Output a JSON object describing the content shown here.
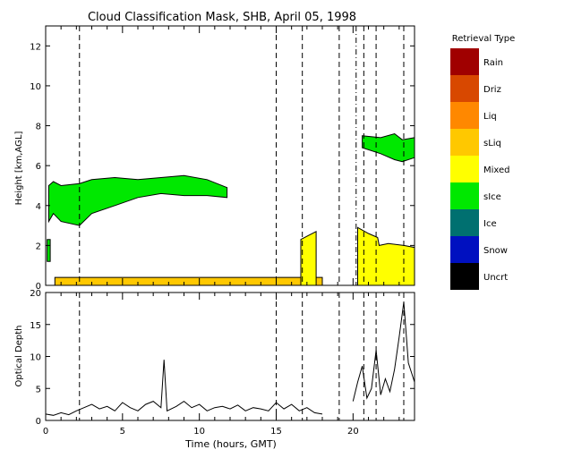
{
  "title": "Cloud Classification Mask, SHB, April 05, 1998",
  "legend": {
    "title": "Retrieval Type",
    "items": [
      {
        "label": "Rain",
        "color": "#a00000"
      },
      {
        "label": "Driz",
        "color": "#d84800"
      },
      {
        "label": "Liq",
        "color": "#ff8800"
      },
      {
        "label": "sLiq",
        "color": "#ffc800"
      },
      {
        "label": "Mixed",
        "color": "#ffff00"
      },
      {
        "label": "sIce",
        "color": "#00e800"
      },
      {
        "label": "Ice",
        "color": "#007070"
      },
      {
        "label": "Snow",
        "color": "#0010c0"
      },
      {
        "label": "Uncrt",
        "color": "#000000"
      }
    ]
  },
  "chart_data": [
    {
      "type": "area",
      "ylabel": "Height [km,AGL]",
      "xlim": [
        0,
        24
      ],
      "ylim": [
        0,
        13
      ],
      "yticks": [
        "0",
        "2",
        "4",
        "6",
        "8",
        "10",
        "12"
      ],
      "dashed_lines_x": [
        2.2,
        15.0,
        16.7,
        19.1,
        20.7,
        21.5,
        23.3
      ],
      "dash_dot_lines_x": [
        20.2
      ],
      "regions": [
        {
          "class": "sIce",
          "x": [
            0.2,
            0.5,
            1.0,
            2.2,
            3.0,
            4.5,
            6.0,
            7.5,
            9.0,
            10.5,
            11.8,
            11.8,
            10.5,
            9.0,
            7.5,
            6.0,
            4.5,
            3.0,
            2.2,
            1.0,
            0.5,
            0.2
          ],
          "y": [
            5.0,
            5.2,
            5.0,
            5.1,
            5.3,
            5.4,
            5.3,
            5.4,
            5.5,
            5.3,
            4.9,
            4.4,
            4.5,
            4.5,
            4.6,
            4.4,
            4.0,
            3.6,
            3.0,
            3.2,
            3.6,
            3.2
          ]
        },
        {
          "class": "sIce",
          "x": [
            0.1,
            0.3,
            0.3,
            0.1
          ],
          "y": [
            2.3,
            2.3,
            1.2,
            1.2
          ]
        },
        {
          "class": "sIce",
          "x": [
            20.6,
            21.8,
            22.7,
            23.2,
            24.0,
            24.0,
            23.2,
            22.7,
            21.8,
            20.6
          ],
          "y": [
            7.5,
            7.4,
            7.6,
            7.3,
            7.4,
            6.4,
            6.2,
            6.3,
            6.6,
            6.9
          ]
        },
        {
          "class": "sLiq",
          "x": [
            0.6,
            18.0,
            18.0,
            0.6
          ],
          "y": [
            0.4,
            0.4,
            0.0,
            0.0
          ]
        },
        {
          "class": "Mixed",
          "x": [
            16.6,
            17.1,
            17.6,
            17.6,
            16.6
          ],
          "y": [
            2.3,
            2.5,
            2.7,
            0.0,
            0.0
          ]
        },
        {
          "class": "Mixed",
          "x": [
            20.3,
            21.0,
            21.6,
            21.7,
            22.3,
            23.3,
            24.0,
            24.0,
            20.3
          ],
          "y": [
            2.9,
            2.6,
            2.4,
            2.0,
            2.1,
            2.0,
            1.9,
            0.0,
            0.0
          ]
        }
      ]
    },
    {
      "type": "line",
      "xlabel": "Time (hours, GMT)",
      "ylabel": "Optical Depth",
      "xlim": [
        0,
        24
      ],
      "ylim": [
        0,
        20
      ],
      "xticks": [
        "0",
        "5",
        "10",
        "15",
        "20"
      ],
      "yticks": [
        "0",
        "5",
        "10",
        "15",
        "20"
      ],
      "dashed_lines_x": [
        2.2,
        15.0,
        16.7,
        19.1,
        20.7,
        21.5,
        23.3
      ],
      "x": [
        0.0,
        0.5,
        1.0,
        1.5,
        2.0,
        2.5,
        3.0,
        3.5,
        4.0,
        4.5,
        5.0,
        5.5,
        6.0,
        6.5,
        7.0,
        7.5,
        7.7,
        7.9,
        8.5,
        9.0,
        9.5,
        10.0,
        10.5,
        11.0,
        11.5,
        12.0,
        12.5,
        13.0,
        13.5,
        14.0,
        14.5,
        15.0,
        15.5,
        16.0,
        16.5,
        17.0,
        17.5,
        18.0,
        20.0,
        20.3,
        20.6,
        20.9,
        21.2,
        21.5,
        21.8,
        22.1,
        22.4,
        22.7,
        23.0,
        23.3,
        23.6,
        24.0
      ],
      "y": [
        1.0,
        0.8,
        1.2,
        0.9,
        1.5,
        2.0,
        2.5,
        1.8,
        2.2,
        1.5,
        2.8,
        2.0,
        1.5,
        2.5,
        3.0,
        2.0,
        9.5,
        1.5,
        2.2,
        3.0,
        2.0,
        2.5,
        1.5,
        2.0,
        2.2,
        1.8,
        2.4,
        1.5,
        2.0,
        1.8,
        1.5,
        2.8,
        1.8,
        2.5,
        1.5,
        2.0,
        1.2,
        1.0,
        3.0,
        6.0,
        8.5,
        3.5,
        5.0,
        11.0,
        4.0,
        6.5,
        4.5,
        8.0,
        13.0,
        18.5,
        9.0,
        6.0
      ]
    }
  ]
}
